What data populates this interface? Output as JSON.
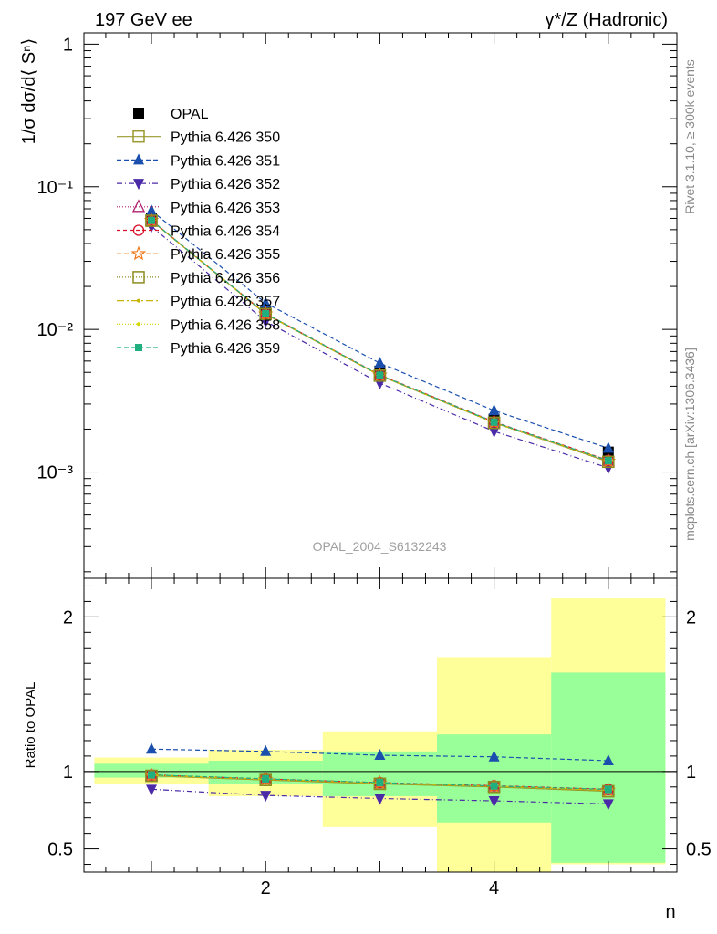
{
  "header": {
    "left": "197 GeV ee",
    "right": "γ*/Z (Hadronic)"
  },
  "side_labels": {
    "rivet": "Rivet 3.1.10, ≥ 300k events",
    "mcplots": "mcplots.cern.ch [arXiv:1306.3436]"
  },
  "colors": {
    "opal": "#000000",
    "s350": "#9a9a30",
    "s351": "#1a4fae",
    "s352": "#4b2aa8",
    "s353": "#b0206e",
    "s354": "#d8112a",
    "s355": "#f07818",
    "s356": "#8c8c20",
    "s357": "#c8b400",
    "s358": "#d4d400",
    "s359": "#20b080",
    "band_yellow": "#ffff99",
    "band_green": "#99ff99"
  },
  "chart_data": [
    {
      "type": "line",
      "title": "",
      "ylabel": "1/σ dσ/d⟨ Sⁿ⟩",
      "yscale": "log",
      "ylim": [
        0.00018,
        1.2
      ],
      "xlim": [
        0.5,
        5.6
      ],
      "ytick_labels": [
        "1",
        "10⁻¹",
        "10⁻²",
        "10⁻³"
      ],
      "watermark": "OPAL_2004_S6132243",
      "x": [
        1,
        2,
        3,
        4,
        5
      ],
      "series": [
        {
          "name": "OPAL",
          "values": [
            0.0595,
            0.0135,
            0.0051,
            0.00235,
            0.00138
          ]
        },
        {
          "name": "Pythia 6.426 350",
          "values": [
            0.0578,
            0.0128,
            0.00475,
            0.00222,
            0.00118
          ]
        },
        {
          "name": "Pythia 6.426 351",
          "values": [
            0.068,
            0.0153,
            0.0058,
            0.0027,
            0.00147
          ]
        },
        {
          "name": "Pythia 6.426 352",
          "values": [
            0.0527,
            0.0114,
            0.0042,
            0.00193,
            0.00107
          ]
        },
        {
          "name": "Pythia 6.426 353",
          "values": [
            0.058,
            0.0129,
            0.00478,
            0.00224,
            0.0012
          ]
        },
        {
          "name": "Pythia 6.426 354",
          "values": [
            0.0582,
            0.0129,
            0.0048,
            0.00225,
            0.00121
          ]
        },
        {
          "name": "Pythia 6.426 355",
          "values": [
            0.0579,
            0.0128,
            0.00477,
            0.00223,
            0.00119
          ]
        },
        {
          "name": "Pythia 6.426 356",
          "values": [
            0.0578,
            0.0128,
            0.00474,
            0.00221,
            0.00118
          ]
        },
        {
          "name": "Pythia 6.426 357",
          "values": [
            0.058,
            0.0129,
            0.00476,
            0.00223,
            0.0012
          ]
        },
        {
          "name": "Pythia 6.426 358",
          "values": [
            0.0579,
            0.0128,
            0.00476,
            0.00222,
            0.00119
          ]
        },
        {
          "name": "Pythia 6.426 359",
          "values": [
            0.0581,
            0.0129,
            0.00478,
            0.00224,
            0.0012
          ]
        }
      ]
    },
    {
      "type": "line",
      "title": "",
      "xlabel": "n",
      "ylabel": "Ratio to OPAL",
      "ylim": [
        0.35,
        2.25
      ],
      "xlim": [
        0.5,
        5.6
      ],
      "yticks": [
        0.5,
        1,
        2
      ],
      "ytick_labels": [
        "0.5",
        "1",
        "2"
      ],
      "xticks": [
        2,
        4
      ],
      "xtick_labels": [
        "2",
        "4"
      ],
      "x": [
        1,
        2,
        3,
        4,
        5
      ],
      "bands": {
        "edges": [
          0.5,
          1.5,
          2.5,
          3.5,
          4.5,
          5.5
        ],
        "yellow": [
          [
            0.92,
            1.09
          ],
          [
            0.84,
            1.14
          ],
          [
            0.64,
            1.26
          ],
          [
            0.35,
            1.74
          ],
          [
            0.4,
            2.12
          ]
        ],
        "green": [
          [
            0.96,
            1.05
          ],
          [
            0.92,
            1.07
          ],
          [
            0.84,
            1.13
          ],
          [
            0.67,
            1.24
          ],
          [
            0.41,
            1.64
          ]
        ]
      },
      "series": [
        {
          "name": "Pythia 6.426 350",
          "values": [
            0.972,
            0.945,
            0.92,
            0.9,
            0.872
          ]
        },
        {
          "name": "Pythia 6.426 351",
          "values": [
            1.145,
            1.13,
            1.105,
            1.095,
            1.07
          ]
        },
        {
          "name": "Pythia 6.426 352",
          "values": [
            0.885,
            0.845,
            0.825,
            0.81,
            0.79
          ]
        },
        {
          "name": "Pythia 6.426 353",
          "values": [
            0.975,
            0.95,
            0.925,
            0.905,
            0.88
          ]
        },
        {
          "name": "Pythia 6.426 354",
          "values": [
            0.978,
            0.952,
            0.928,
            0.908,
            0.885
          ]
        },
        {
          "name": "Pythia 6.426 355",
          "values": [
            0.975,
            0.948,
            0.925,
            0.905,
            0.878
          ]
        },
        {
          "name": "Pythia 6.426 356",
          "values": [
            0.972,
            0.945,
            0.92,
            0.9,
            0.872
          ]
        },
        {
          "name": "Pythia 6.426 357",
          "values": [
            0.976,
            0.95,
            0.925,
            0.905,
            0.88
          ]
        },
        {
          "name": "Pythia 6.426 358",
          "values": [
            0.975,
            0.948,
            0.924,
            0.904,
            0.878
          ]
        },
        {
          "name": "Pythia 6.426 359",
          "values": [
            0.978,
            0.952,
            0.928,
            0.906,
            0.884
          ]
        }
      ]
    }
  ]
}
